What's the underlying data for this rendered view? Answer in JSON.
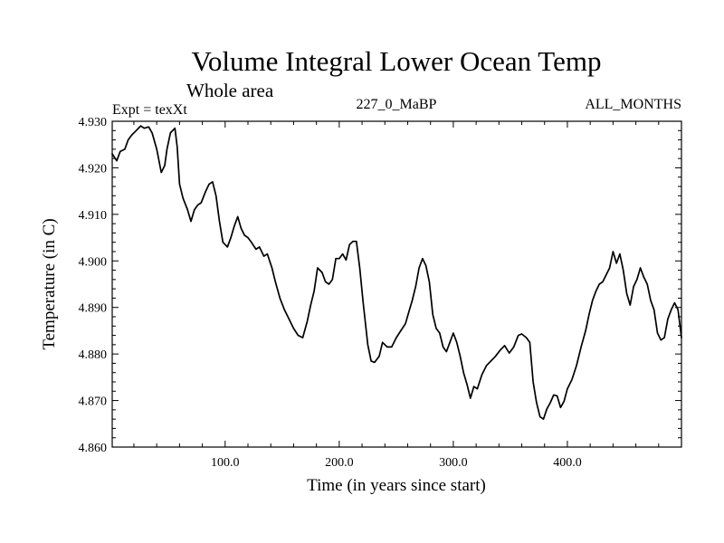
{
  "chart_data": {
    "type": "line",
    "title": "Volume Integral Lower Ocean Temp",
    "subtitle": "Whole area",
    "left_header": "Expt = texXt",
    "center_header": "227_0_MaBP",
    "right_header": "ALL_MONTHS",
    "xlabel": "Time (in years since start)",
    "ylabel": "Temperature (in C)",
    "xlim": [
      1,
      500
    ],
    "ylim": [
      4.86,
      4.93
    ],
    "x_ticks": [
      100,
      200,
      300,
      400
    ],
    "x_tick_labels": [
      "100.0",
      "200.0",
      "300.0",
      "400.0"
    ],
    "y_ticks": [
      4.86,
      4.87,
      4.88,
      4.89,
      4.9,
      4.91,
      4.92,
      4.93
    ],
    "y_tick_labels": [
      "4.860",
      "4.870",
      "4.880",
      "4.890",
      "4.900",
      "4.910",
      "4.920",
      "4.930"
    ],
    "series": [
      {
        "name": "Temperature",
        "color": "#000000",
        "x": [
          1,
          5,
          8,
          12,
          15,
          18,
          22,
          26,
          29,
          33,
          36,
          40,
          44,
          47,
          49,
          52,
          56,
          58,
          60,
          63,
          67,
          70,
          73,
          76,
          79,
          83,
          86,
          89,
          92,
          95,
          98,
          102,
          105,
          108,
          111,
          114,
          117,
          120,
          123,
          127,
          130,
          134,
          137,
          141,
          144,
          148,
          152,
          156,
          160,
          164,
          168,
          172,
          175,
          178,
          181,
          185,
          188,
          191,
          194,
          197,
          200,
          203,
          206,
          209,
          212,
          215,
          218,
          221,
          225,
          228,
          231,
          235,
          238,
          242,
          246,
          250,
          254,
          258,
          261,
          264,
          267,
          270,
          273,
          276,
          279,
          282,
          285,
          288,
          291,
          294,
          297,
          300,
          303,
          306,
          309,
          312,
          315,
          318,
          321,
          325,
          329,
          333,
          337,
          341,
          345,
          349,
          353,
          357,
          360,
          364,
          367,
          370,
          373,
          376,
          379,
          382,
          385,
          388,
          391,
          394,
          397,
          400,
          404,
          408,
          412,
          416,
          419,
          422,
          425,
          428,
          431,
          434,
          437,
          440,
          443,
          446,
          449,
          452,
          455,
          458,
          461,
          464,
          467,
          470,
          473,
          476,
          479,
          482,
          485,
          488,
          491,
          494,
          497,
          500
        ],
        "y": [
          4.923,
          4.9215,
          4.9235,
          4.924,
          4.926,
          4.927,
          4.928,
          4.929,
          4.9285,
          4.9288,
          4.9275,
          4.924,
          4.919,
          4.9205,
          4.924,
          4.9275,
          4.9285,
          4.9245,
          4.9165,
          4.9135,
          4.911,
          4.9085,
          4.911,
          4.912,
          4.9125,
          4.915,
          4.9165,
          4.917,
          4.914,
          4.9085,
          4.904,
          4.903,
          4.905,
          4.9075,
          4.9095,
          4.907,
          4.9055,
          4.905,
          4.904,
          4.9025,
          4.903,
          4.901,
          4.9015,
          4.8985,
          4.8955,
          4.892,
          4.8895,
          4.8875,
          4.8855,
          4.884,
          4.8835,
          4.887,
          4.8905,
          4.8935,
          4.8985,
          4.8975,
          4.8955,
          4.895,
          4.896,
          4.9005,
          4.9005,
          4.9015,
          4.9002,
          4.9035,
          4.9042,
          4.9042,
          4.8985,
          4.891,
          4.882,
          4.8785,
          4.8782,
          4.8795,
          4.8825,
          4.8815,
          4.8815,
          4.8835,
          4.885,
          4.8865,
          4.889,
          4.8915,
          4.8945,
          4.8985,
          4.9005,
          4.899,
          4.8955,
          4.8885,
          4.8855,
          4.8845,
          4.8815,
          4.8805,
          4.8825,
          4.8845,
          4.8825,
          4.8795,
          4.876,
          4.8735,
          4.8705,
          4.873,
          4.8725,
          4.8755,
          4.8775,
          4.8785,
          4.8795,
          4.8808,
          4.8818,
          4.8802,
          4.8815,
          4.884,
          4.8843,
          4.8835,
          4.8825,
          4.874,
          4.8695,
          4.8665,
          4.866,
          4.8682,
          4.8695,
          4.8712,
          4.871,
          4.8685,
          4.8698,
          4.8725,
          4.8745,
          4.8775,
          4.8815,
          4.885,
          4.8885,
          4.8915,
          4.8935,
          4.895,
          4.8955,
          4.897,
          4.8985,
          4.902,
          4.8995,
          4.9015,
          4.898,
          4.893,
          4.8905,
          4.8945,
          4.896,
          4.8985,
          4.8965,
          4.895,
          4.8915,
          4.8895,
          4.8845,
          4.883,
          4.8835,
          4.8875,
          4.8895,
          4.891,
          4.8895,
          4.8835
        ]
      }
    ]
  }
}
